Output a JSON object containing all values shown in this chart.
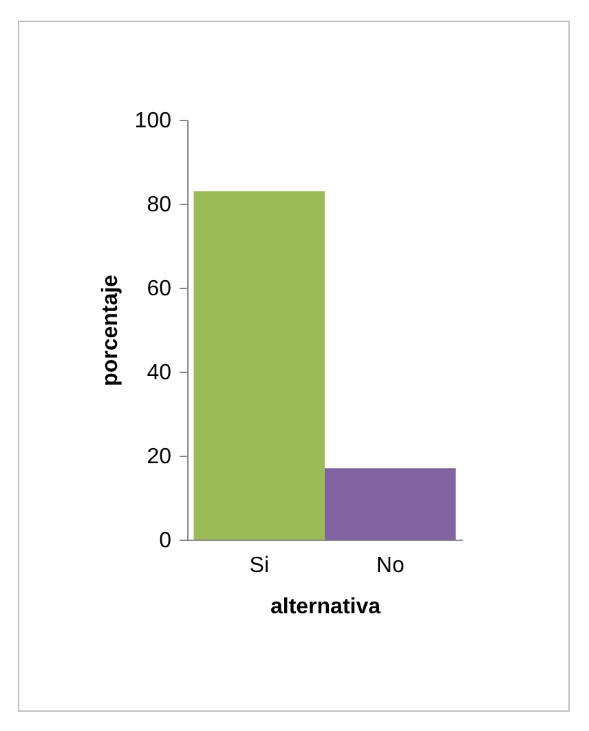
{
  "chart_data": {
    "type": "bar",
    "xlabel": "alternativa",
    "ylabel": "porcentaje",
    "categories": [
      "Si",
      "No"
    ],
    "values": [
      83,
      17
    ],
    "colors": [
      "#9bbb59",
      "#8064a2"
    ],
    "ylim": [
      0,
      100
    ],
    "yticks": [
      0,
      20,
      40,
      60,
      80,
      100
    ],
    "grid": false
  }
}
